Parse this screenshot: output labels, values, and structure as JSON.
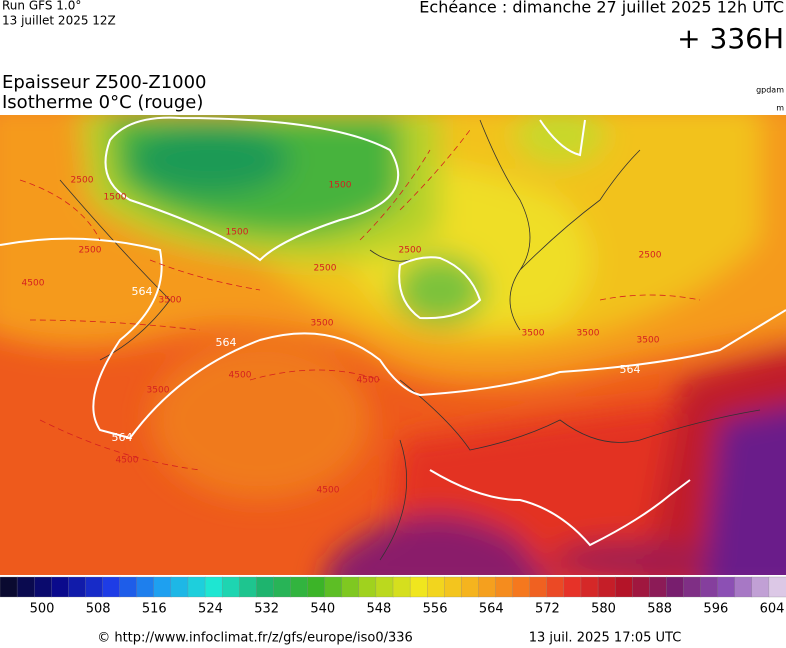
{
  "header": {
    "run": "Run GFS 1.0°",
    "run_date": "13 juillet 2025 12Z",
    "valid_time": "Echéance : dimanche 27 juillet 2025 12h UTC",
    "lead": "+ 336H",
    "title_line1": "Epaisseur Z500-Z1000",
    "title_line2": "Isotherme 0°C (rouge)",
    "unit1": "gpdam",
    "unit2": "m"
  },
  "map": {
    "thickness_labels": [
      564,
      564,
      564,
      564
    ],
    "iso0_labels": [
      1500,
      1500,
      1500,
      2500,
      2500,
      2500,
      2500,
      2500,
      3500,
      3500,
      3500,
      3500,
      3500,
      3500,
      4500,
      4500,
      4500,
      4500,
      4500
    ]
  },
  "colorbar": {
    "ticks": [
      500,
      508,
      516,
      524,
      532,
      540,
      548,
      556,
      564,
      572,
      580,
      588,
      596,
      604
    ]
  },
  "footer": {
    "url": "© http://www.infoclimat.fr/z/gfs/europe/iso0/336",
    "generated": "13 juil. 2025 17:05 UTC"
  }
}
